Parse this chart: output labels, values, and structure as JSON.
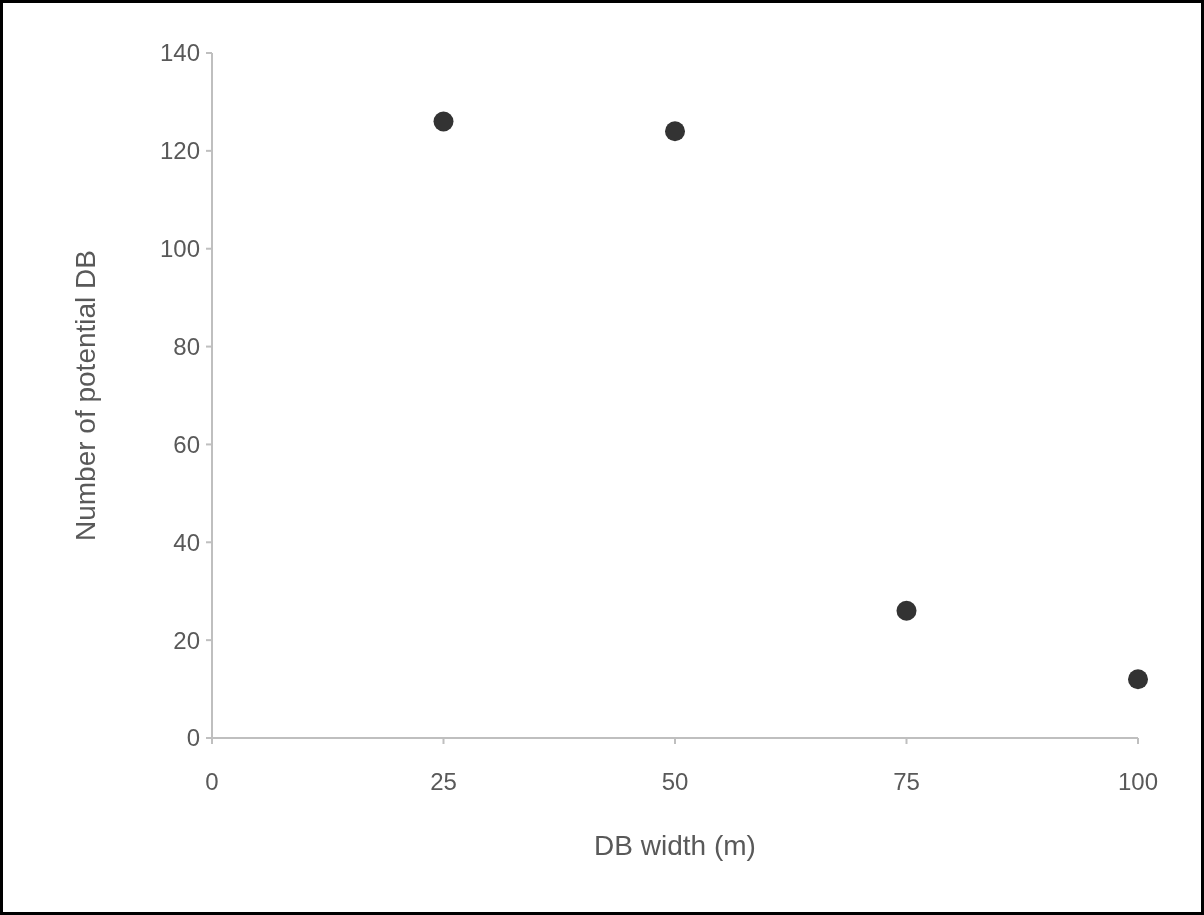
{
  "chart_data": {
    "type": "scatter",
    "xlabel": "DB width (m)",
    "ylabel": "Number of potential DB",
    "x": [
      25,
      50,
      75,
      100
    ],
    "series": [
      {
        "color": "#333333",
        "values": [
          126,
          124,
          26,
          12
        ]
      }
    ],
    "xlim": [
      0,
      100
    ],
    "xticks": [
      0,
      25,
      50,
      75,
      100
    ],
    "ylim": [
      0,
      140
    ],
    "yticks": [
      0,
      20,
      40,
      60,
      80,
      100,
      120,
      140
    ],
    "marker": "circle",
    "grid": false
  }
}
